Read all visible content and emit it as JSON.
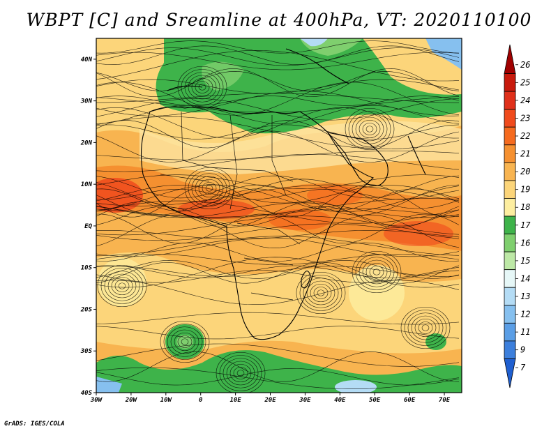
{
  "title": "WBPT [C] and Sreamline at 400hPa, VT: 2020110100",
  "credit": "GrADS: IGES/COLA",
  "map": {
    "projection": "lat-lon",
    "lon_range": [
      -30,
      75
    ],
    "lat_range": [
      -40,
      45
    ],
    "lat_ticks": [
      {
        "value": 40,
        "label": "40N"
      },
      {
        "value": 30,
        "label": "30N"
      },
      {
        "value": 20,
        "label": "20N"
      },
      {
        "value": 10,
        "label": "10N"
      },
      {
        "value": 0,
        "label": "EQ"
      },
      {
        "value": -10,
        "label": "10S"
      },
      {
        "value": -20,
        "label": "20S"
      },
      {
        "value": -30,
        "label": "30S"
      },
      {
        "value": -40,
        "label": "40S"
      }
    ],
    "lon_ticks": [
      {
        "value": -30,
        "label": "30W"
      },
      {
        "value": -20,
        "label": "20W"
      },
      {
        "value": -10,
        "label": "10W"
      },
      {
        "value": 0,
        "label": "0"
      },
      {
        "value": 10,
        "label": "10E"
      },
      {
        "value": 20,
        "label": "20E"
      },
      {
        "value": 30,
        "label": "30E"
      },
      {
        "value": 40,
        "label": "40E"
      },
      {
        "value": 50,
        "label": "50E"
      },
      {
        "value": 60,
        "label": "60E"
      },
      {
        "value": 70,
        "label": "70E"
      }
    ]
  },
  "colorbar": {
    "levels": [
      {
        "label": "26",
        "color": "#a00000"
      },
      {
        "label": "25",
        "color": "#c81a0c"
      },
      {
        "label": "24",
        "color": "#e0301a"
      },
      {
        "label": "23",
        "color": "#f04a1c"
      },
      {
        "label": "22",
        "color": "#f56a1e"
      },
      {
        "label": "21",
        "color": "#f59030"
      },
      {
        "label": "20",
        "color": "#f8b450"
      },
      {
        "label": "19",
        "color": "#fcd57a"
      },
      {
        "label": "18",
        "color": "#fdeea0"
      },
      {
        "label": "17",
        "color": "#3eb34a"
      },
      {
        "label": "16",
        "color": "#7fcf6e"
      },
      {
        "label": "15",
        "color": "#bde8a6"
      },
      {
        "label": "14",
        "color": "#e6f7f7"
      },
      {
        "label": "13",
        "color": "#b4dcf5"
      },
      {
        "label": "12",
        "color": "#86c0ef"
      },
      {
        "label": "11",
        "color": "#5a9ee6"
      },
      {
        "label": "9",
        "color": "#3c7fdc"
      },
      {
        "label": "7",
        "color": "#1f5fd0"
      }
    ]
  }
}
